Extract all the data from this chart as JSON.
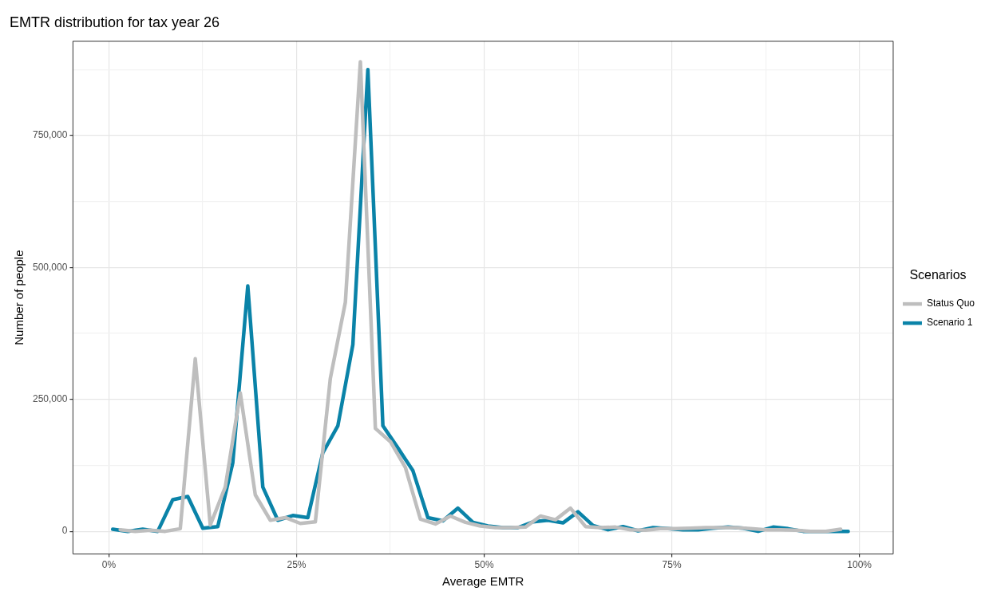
{
  "chart_data": {
    "type": "line",
    "title": "EMTR distribution for tax year 26",
    "xlabel": "Average EMTR",
    "ylabel": "Number of people",
    "legend_title": "Scenarios",
    "legend": "right",
    "grid": true,
    "marker": "none",
    "line_style": "solid",
    "xlim": [
      -4.8,
      104.5
    ],
    "ylim": [
      -43000,
      929000
    ],
    "xticks": [
      {
        "value": 0,
        "label": "0%"
      },
      {
        "value": 12.5,
        "label": null
      },
      {
        "value": 25,
        "label": "25%"
      },
      {
        "value": 37.5,
        "label": null
      },
      {
        "value": 50,
        "label": "50%"
      },
      {
        "value": 62.5,
        "label": null
      },
      {
        "value": 75,
        "label": "75%"
      },
      {
        "value": 87.5,
        "label": null
      },
      {
        "value": 100,
        "label": "100%"
      }
    ],
    "yticks": [
      {
        "value": 0,
        "label": "0"
      },
      {
        "value": 125000,
        "label": null
      },
      {
        "value": 250000,
        "label": "250,000"
      },
      {
        "value": 375000,
        "label": null
      },
      {
        "value": 500000,
        "label": "500,000"
      },
      {
        "value": 625000,
        "label": null
      },
      {
        "value": 750000,
        "label": "750,000"
      },
      {
        "value": 875000,
        "label": null
      }
    ],
    "series": [
      {
        "name": "Status Quo",
        "color": "#bebebe",
        "x": [
          1.5,
          3.5,
          5.5,
          7.5,
          9.5,
          11.5,
          13.5,
          15.5,
          17.5,
          19.5,
          21.5,
          23.5,
          25.5,
          27.5,
          29.5,
          31.5,
          33.5,
          35.5,
          37.5,
          39.5,
          41.5,
          43.5,
          45.5,
          47.5,
          49.5,
          51.5,
          53.5,
          55.5,
          57.5,
          59.5,
          61.5,
          63.5,
          65.5,
          67.5,
          69.5,
          71.5,
          73.5,
          75.5,
          77.5,
          79.5,
          81.5,
          83.5,
          85.5,
          87.5,
          89.5,
          91.5,
          93.5,
          95.5,
          97.5
        ],
        "values": [
          3000,
          0,
          2000,
          0,
          5000,
          327000,
          12000,
          84000,
          262000,
          69000,
          21000,
          26000,
          15000,
          18000,
          290000,
          434000,
          890000,
          195000,
          170000,
          121000,
          23000,
          14000,
          29000,
          17000,
          10000,
          7000,
          7000,
          8000,
          29000,
          22000,
          44000,
          9000,
          7000,
          8000,
          3000,
          2000,
          5000,
          5000,
          6000,
          7000,
          7000,
          7000,
          5000,
          3000,
          3000,
          2000,
          0,
          0,
          4000
        ]
      },
      {
        "name": "Scenario 1",
        "color": "#0a83a8",
        "x": [
          0.5,
          2.5,
          4.5,
          6.5,
          8.5,
          10.5,
          12.5,
          14.5,
          16.5,
          18.5,
          20.5,
          22.5,
          24.5,
          26.5,
          28.5,
          30.5,
          32.5,
          34.5,
          36.5,
          38.5,
          40.5,
          42.5,
          44.5,
          46.5,
          48.5,
          50.5,
          52.5,
          54.5,
          56.5,
          58.5,
          60.5,
          62.5,
          64.5,
          66.5,
          68.5,
          70.5,
          72.5,
          74.5,
          76.5,
          78.5,
          80.5,
          82.5,
          84.5,
          86.5,
          88.5,
          90.5,
          92.5,
          94.5,
          96.5,
          98.5
        ],
        "values": [
          4000,
          0,
          4000,
          0,
          60000,
          66000,
          6000,
          9000,
          130000,
          465000,
          84000,
          21000,
          30000,
          26000,
          149000,
          200000,
          354000,
          875000,
          200000,
          158000,
          115000,
          26000,
          20000,
          44000,
          17000,
          10000,
          7000,
          7000,
          18000,
          21000,
          16000,
          37000,
          11000,
          3000,
          9000,
          1000,
          7000,
          5000,
          3000,
          3000,
          6000,
          8000,
          6000,
          0,
          8000,
          5000,
          0,
          0,
          0,
          0
        ]
      }
    ]
  }
}
